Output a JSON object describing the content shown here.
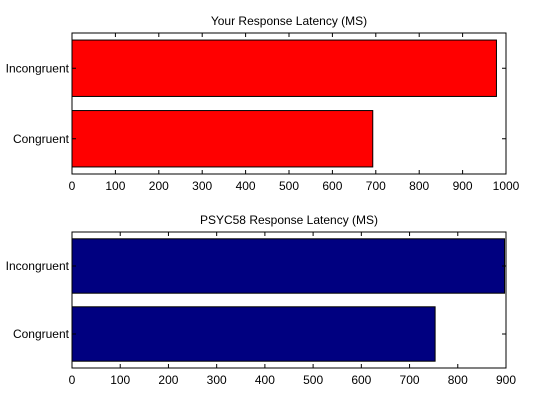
{
  "chart_data": [
    {
      "type": "bar",
      "orientation": "horizontal",
      "title": "Your Response Latency (MS)",
      "categories": [
        "Incongruent",
        "Congruent"
      ],
      "values": [
        978,
        693
      ],
      "xlim": [
        0,
        1000
      ],
      "xticks": [
        0,
        100,
        200,
        300,
        400,
        500,
        600,
        700,
        800,
        900,
        1000
      ],
      "bar_color": "#ff0000",
      "grid": false
    },
    {
      "type": "bar",
      "orientation": "horizontal",
      "title": "PSYC58 Response Latency (MS)",
      "categories": [
        "Incongruent",
        "Congruent"
      ],
      "values": [
        897,
        753
      ],
      "xlim": [
        0,
        900
      ],
      "xticks": [
        0,
        100,
        200,
        300,
        400,
        500,
        600,
        700,
        800,
        900
      ],
      "bar_color": "#000080",
      "grid": false
    }
  ]
}
